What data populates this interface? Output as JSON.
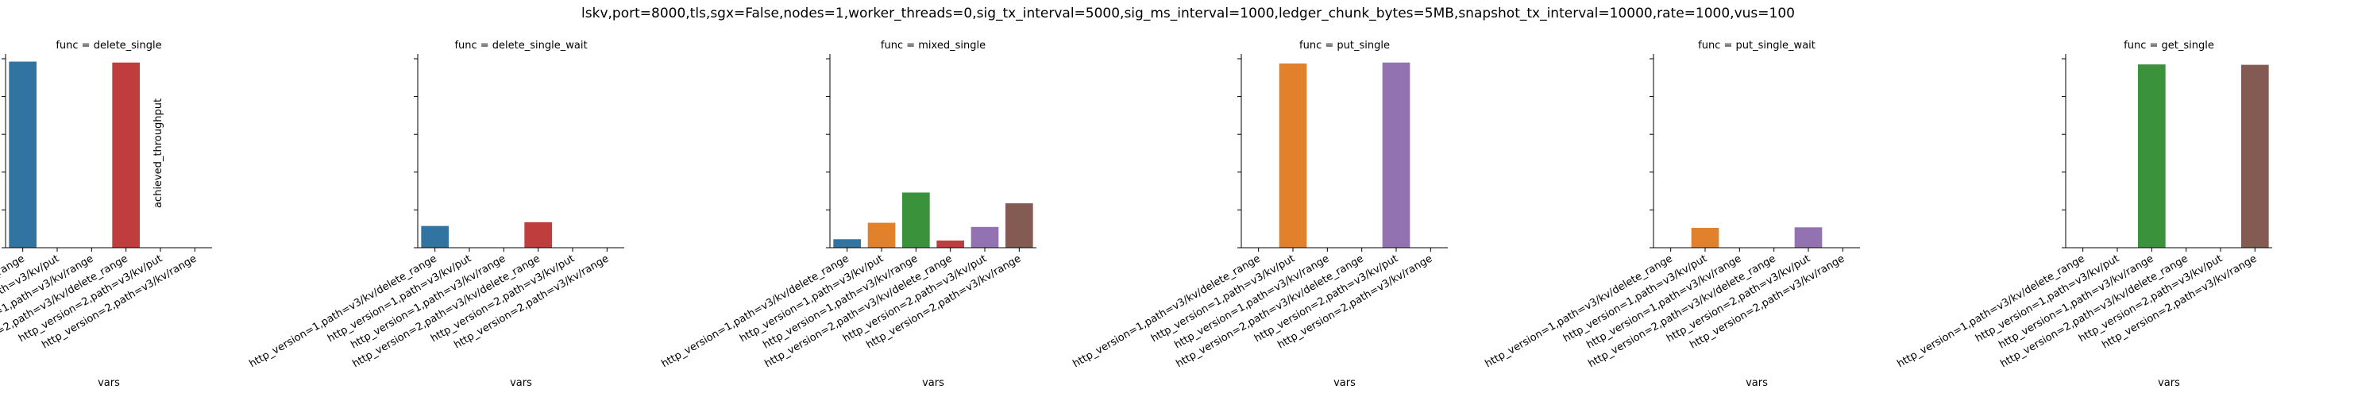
{
  "chart_data": {
    "type": "bar",
    "suptitle": "lskv,port=8000,tls,sgx=False,nodes=1,worker_threads=0,sig_tx_interval=5000,sig_ms_interval=1000,ledger_chunk_bytes=5MB,snapshot_tx_interval=10000,rate=1000,vus=100",
    "xlabel": "vars",
    "ylabel": "achieved_throughput",
    "ylim": [
      0,
      1000
    ],
    "yticks": [
      0,
      200,
      400,
      600,
      800,
      1000
    ],
    "categories": [
      "http_version=1,path=v3/kv/delete_range",
      "http_version=1,path=v3/kv/put",
      "http_version=1,path=v3/kv/range",
      "http_version=2,path=v3/kv/delete_range",
      "http_version=2,path=v3/kv/put",
      "http_version=2,path=v3/kv/range"
    ],
    "colors": [
      "#3274a1",
      "#e1812c",
      "#3a923a",
      "#c03d3e",
      "#9372b2",
      "#845b53"
    ],
    "panels": [
      {
        "title": "func = delete_single",
        "values": [
          985,
          0,
          0,
          980,
          0,
          0
        ]
      },
      {
        "title": "func = delete_single_wait",
        "values": [
          115,
          0,
          0,
          135,
          0,
          0
        ]
      },
      {
        "title": "func = mixed_single",
        "values": [
          45,
          132,
          292,
          38,
          110,
          235
        ]
      },
      {
        "title": "func = put_single",
        "values": [
          0,
          975,
          0,
          0,
          980,
          0
        ]
      },
      {
        "title": "func = put_single_wait",
        "values": [
          0,
          105,
          0,
          0,
          108,
          0
        ]
      },
      {
        "title": "func = get_single",
        "values": [
          0,
          0,
          970,
          0,
          0,
          968
        ]
      }
    ]
  }
}
